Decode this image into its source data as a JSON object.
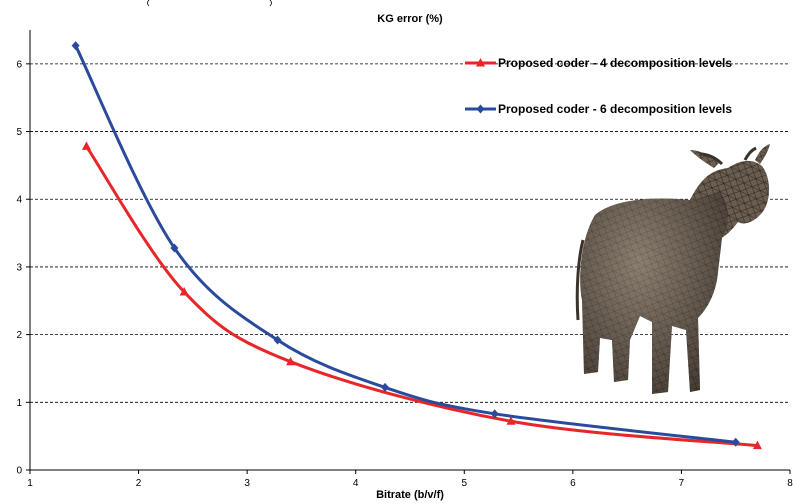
{
  "chart_data": {
    "type": "line",
    "title": "KG error (%)",
    "xlabel": "Bitrate (b/v/f)",
    "ylabel": "",
    "xlim": [
      1,
      8
    ],
    "ylim": [
      0,
      6.5
    ],
    "x_ticks": [
      1,
      2,
      3,
      4,
      5,
      6,
      7,
      8
    ],
    "y_ticks": [
      0,
      1,
      2,
      3,
      4,
      5,
      6
    ],
    "grid": "horizontal dashed",
    "legend_position": "top-right",
    "series": [
      {
        "name": "Proposed coder - 4 decomposition levels",
        "color": "#e8262a",
        "marker": "triangle",
        "x": [
          1.52,
          2.42,
          3.4,
          5.43,
          7.7
        ],
        "y": [
          4.78,
          2.63,
          1.6,
          0.72,
          0.36
        ]
      },
      {
        "name": "Proposed coder - 6 decomposition levels",
        "color": "#2a4a9c",
        "marker": "diamond",
        "x": [
          1.42,
          2.33,
          3.28,
          4.27,
          5.28,
          7.5
        ],
        "y": [
          6.27,
          3.28,
          1.92,
          1.22,
          0.83,
          0.41
        ]
      }
    ]
  },
  "illustration": {
    "icon": "cow-mesh-icon",
    "mesh_color": "#5e5246"
  }
}
